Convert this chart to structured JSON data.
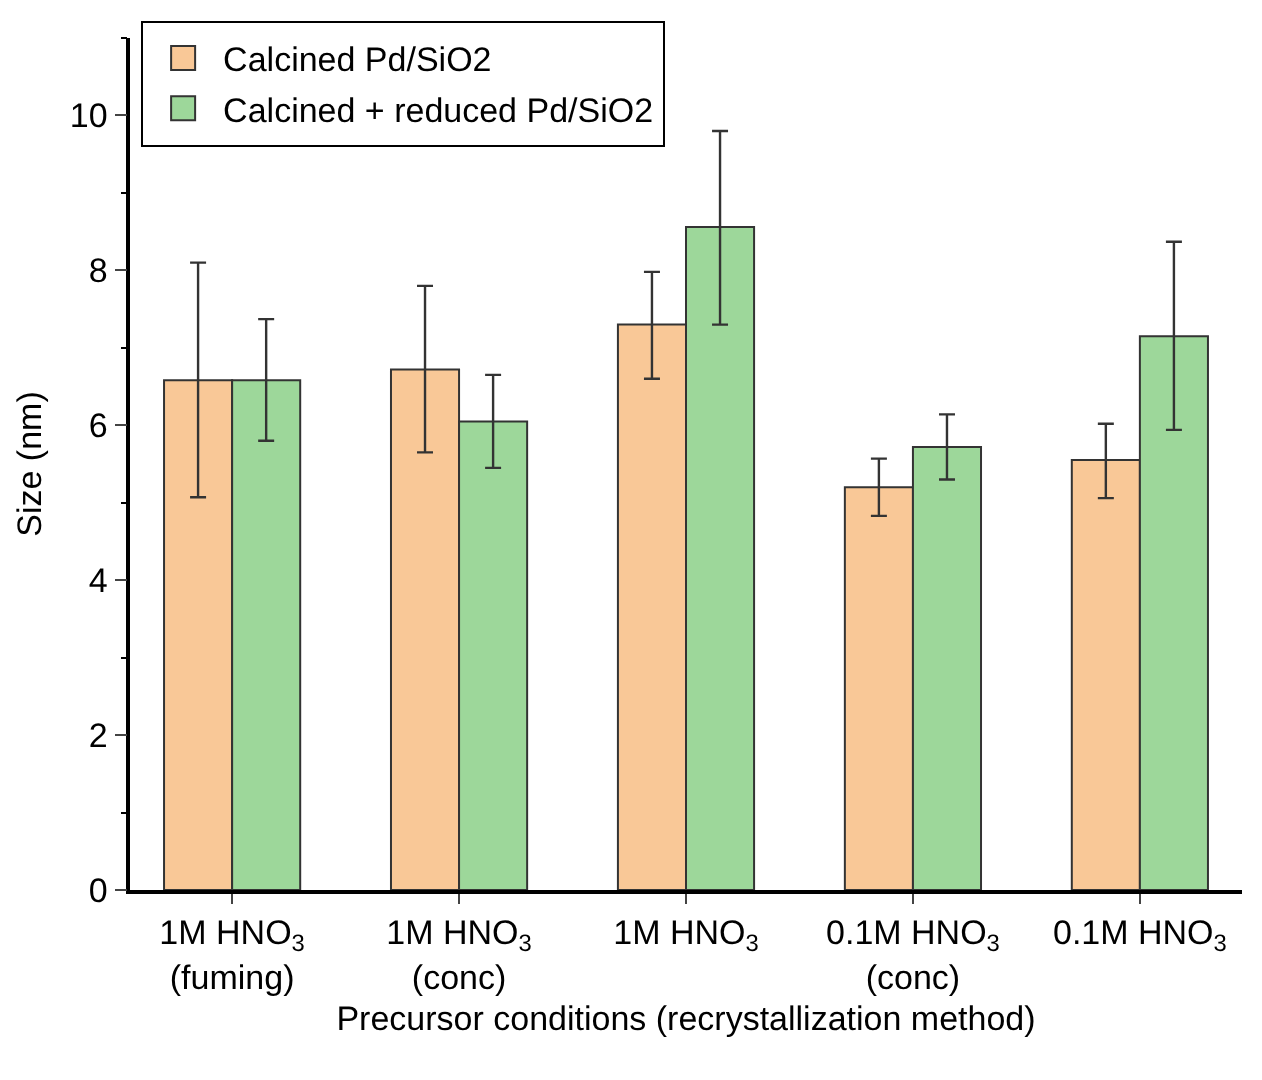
{
  "chart_data": {
    "type": "bar",
    "xlabel": "Precursor conditions (recrystallization method)",
    "ylabel": "Size (nm)",
    "categories": [
      "1M HNO$_{3}$\n(fuming)",
      "1M HNO$_{3}$\n(conc)",
      "1M HNO$_{3}$",
      "0.1M HNO$_{3}$\n(conc)",
      "0.1M HNO$_{3}$"
    ],
    "series": [
      {
        "name": "Calcined Pd/SiO2",
        "color": "#f9c897",
        "values": [
          6.58,
          6.72,
          7.3,
          5.2,
          5.55
        ],
        "errors": [
          [
            5.07,
            8.1
          ],
          [
            5.65,
            7.8
          ],
          [
            6.6,
            7.98
          ],
          [
            4.83,
            5.57
          ],
          [
            5.06,
            6.02
          ]
        ]
      },
      {
        "name": "Calcined + reduced Pd/SiO2",
        "color": "#9dd79a",
        "values": [
          6.58,
          6.05,
          8.56,
          5.72,
          7.15
        ],
        "errors": [
          [
            5.8,
            7.37
          ],
          [
            5.45,
            6.65
          ],
          [
            7.3,
            9.8
          ],
          [
            5.3,
            6.14
          ],
          [
            5.94,
            8.37
          ]
        ]
      }
    ],
    "ylim": [
      0,
      11
    ],
    "yticks": [
      0,
      2,
      4,
      6,
      8,
      10
    ],
    "grid": false,
    "legend": "top left"
  }
}
